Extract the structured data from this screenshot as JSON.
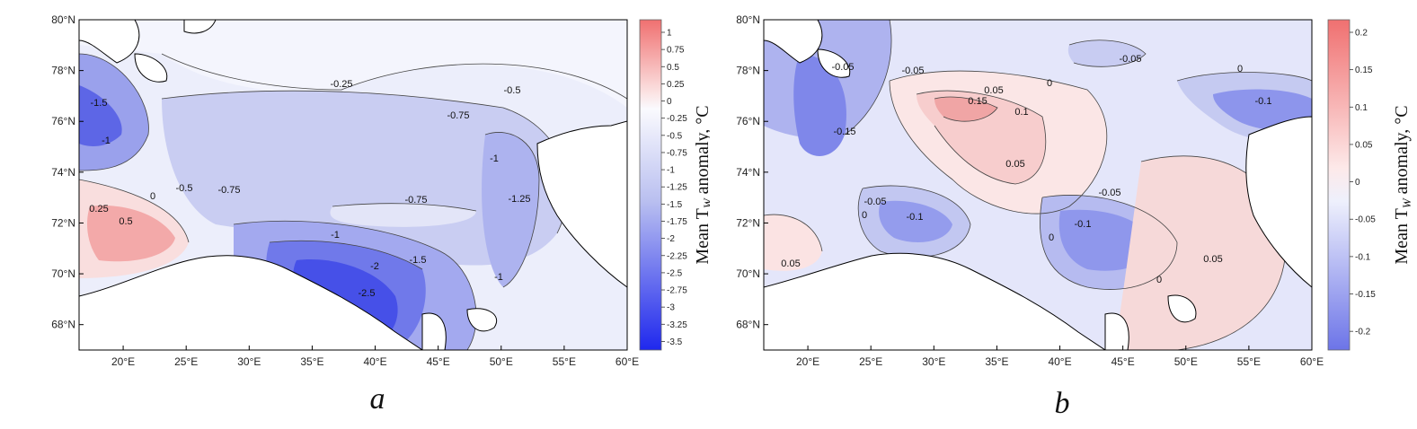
{
  "panels": [
    {
      "id": "a",
      "label": "a",
      "lat_ticks": [
        "80°N",
        "78°N",
        "76°N",
        "74°N",
        "72°N",
        "70°N",
        "68°N"
      ],
      "lon_ticks": [
        "20°E",
        "25°E",
        "30°E",
        "35°E",
        "40°E",
        "45°E",
        "50°E",
        "55°E",
        "60°E"
      ],
      "colorbar": {
        "title": "Mean T",
        "title_sub": "W",
        "title_tail": " anomaly, °C",
        "ticks": [
          "1",
          "0.75",
          "0.5",
          "0.25",
          "0",
          "-0.25",
          "-0.5",
          "-0.75",
          "-1",
          "-1.25",
          "-1.5",
          "-1.75",
          "-2",
          "-2.25",
          "-2.5",
          "-2.75",
          "-3",
          "-3.25",
          "-3.5"
        ]
      },
      "contour_labels": [
        "-0.25",
        "-0.5",
        "-0.75",
        "-1.5",
        "-1",
        "-0.5",
        "-0.75",
        "-0.75",
        "-1",
        "-1.25",
        "0.25",
        "0",
        "0.5",
        "-1",
        "-1.5",
        "-2",
        "-2.5",
        "-1"
      ]
    },
    {
      "id": "b",
      "label": "b",
      "lat_ticks": [
        "80°N",
        "78°N",
        "76°N",
        "74°N",
        "72°N",
        "70°N",
        "68°N"
      ],
      "lon_ticks": [
        "20°E",
        "25°E",
        "30°E",
        "35°E",
        "40°E",
        "45°E",
        "50°E",
        "55°E",
        "60°E"
      ],
      "colorbar": {
        "title": "Mean T",
        "title_sub": "W",
        "title_tail": " anomaly, °C",
        "ticks": [
          "0.2",
          "0.15",
          "0.1",
          "0.05",
          "0",
          "-0.05",
          "-0.1",
          "-0.15",
          "-0.2"
        ]
      },
      "contour_labels": [
        "-0.05",
        "-0.05",
        "-0.05",
        "0",
        "0.05",
        "0.15",
        "0.1",
        "0.05",
        "-0.1",
        "-0.15",
        "0",
        "-0.05",
        "-0.1",
        "-0.05",
        "-0.1",
        "0",
        "0.05",
        "0",
        "0.05",
        "0"
      ]
    }
  ],
  "colors": {
    "warm_strong": "#f07070",
    "warm": "#f7c9c9",
    "neutral": "#f4f4fb",
    "cool": "#c8ccf2",
    "cool_strong": "#4a55e6",
    "land": "#ffffff"
  }
}
